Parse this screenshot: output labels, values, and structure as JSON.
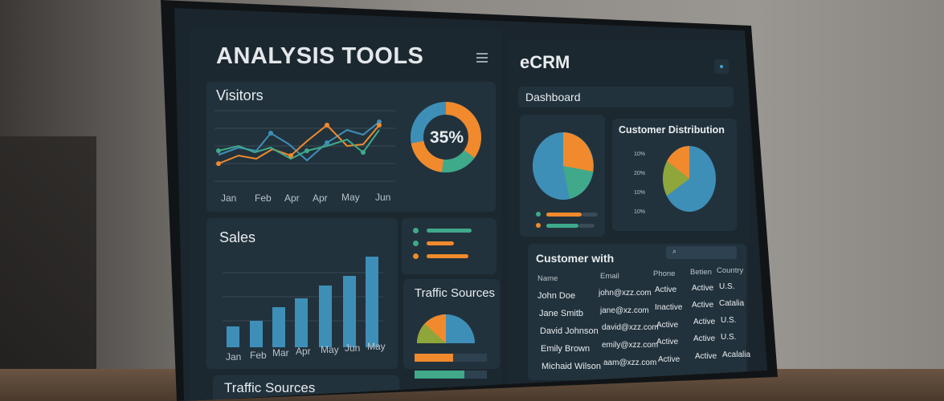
{
  "analysis": {
    "title": "ANALYSIS TOOLS",
    "menu_icon": "hamburger-icon",
    "visitors": {
      "title": "Visitors",
      "months": [
        "Jan",
        "Feb",
        "Apr",
        "Apr",
        "May",
        "Jun"
      ],
      "donut_label": "35%",
      "donut_value": 0.35
    },
    "sales": {
      "title": "Sales",
      "months": [
        "Jan",
        "Feb",
        "Mar",
        "Apr",
        "May",
        "Jun",
        "May"
      ]
    },
    "traffic_small": {
      "title": "Traffic Sources"
    },
    "traffic_bottom": {
      "title": "Traffic Sources"
    }
  },
  "ecrm": {
    "title": "eCRM",
    "dashboard_label": "Dashboard",
    "customer_distribution": {
      "title": "Customer Distribution",
      "tick_labels": [
        "10%",
        "20%",
        "10%",
        "10%"
      ]
    },
    "table": {
      "title": "Customer with",
      "search_icon": "search-icon",
      "headers": [
        "Name",
        "Email",
        "Phone",
        "Betien",
        "Country"
      ],
      "rows": [
        {
          "name": "John Doe",
          "email": "john@xzz.com",
          "phone": "Active",
          "status": "Active",
          "country": "U.S."
        },
        {
          "name": "Jane Smitb",
          "email": "jane@xz.com",
          "phone": "Inactive",
          "status": "Active",
          "country": "Catalia"
        },
        {
          "name": "David Johnson",
          "email": "david@xzz.com",
          "phone": "Active",
          "status": "Active",
          "country": "U.S."
        },
        {
          "name": "Emily Brown",
          "email": "emily@xzz.com",
          "phone": "Active",
          "status": "Active",
          "country": "U.S."
        },
        {
          "name": "Michaid Wilson",
          "email": "aam@xzz.com",
          "phone": "Active",
          "status": "Active",
          "country": "Acalalia"
        }
      ]
    }
  },
  "colors": {
    "blue": "#3e8fb8",
    "orange": "#f08a2c",
    "green": "#3fa98a",
    "olive": "#8ea63a"
  }
}
